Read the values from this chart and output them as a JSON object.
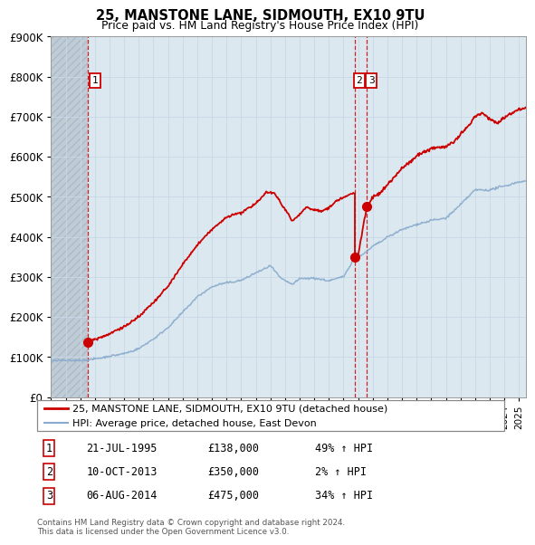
{
  "title": "25, MANSTONE LANE, SIDMOUTH, EX10 9TU",
  "subtitle": "Price paid vs. HM Land Registry's House Price Index (HPI)",
  "ylim": [
    0,
    900000
  ],
  "yticks": [
    0,
    100000,
    200000,
    300000,
    400000,
    500000,
    600000,
    700000,
    800000,
    900000
  ],
  "ytick_labels": [
    "£0",
    "£100K",
    "£200K",
    "£300K",
    "£400K",
    "£500K",
    "£600K",
    "£700K",
    "£800K",
    "£900K"
  ],
  "xlim_start": 1993.0,
  "xlim_end": 2025.5,
  "sales": [
    {
      "year": 1995.54,
      "price": 138000,
      "label": "1"
    },
    {
      "year": 2013.77,
      "price": 350000,
      "label": "2"
    },
    {
      "year": 2014.59,
      "price": 475000,
      "label": "3"
    }
  ],
  "sale_dates": [
    "21-JUL-1995",
    "10-OCT-2013",
    "06-AUG-2014"
  ],
  "sale_prices": [
    "£138,000",
    "£350,000",
    "£475,000"
  ],
  "sale_hpi": [
    "49% ↑ HPI",
    "2% ↑ HPI",
    "34% ↑ HPI"
  ],
  "legend_label_red": "25, MANSTONE LANE, SIDMOUTH, EX10 9TU (detached house)",
  "legend_label_blue": "HPI: Average price, detached house, East Devon",
  "footer": "Contains HM Land Registry data © Crown copyright and database right 2024.\nThis data is licensed under the Open Government Licence v3.0.",
  "red_color": "#cc0000",
  "blue_color": "#88aacc",
  "vline_color": "#cc0000",
  "grid_color": "#c8d8e8",
  "plot_bg": "#dce8f0",
  "hatch_color": "#c0ccd4"
}
